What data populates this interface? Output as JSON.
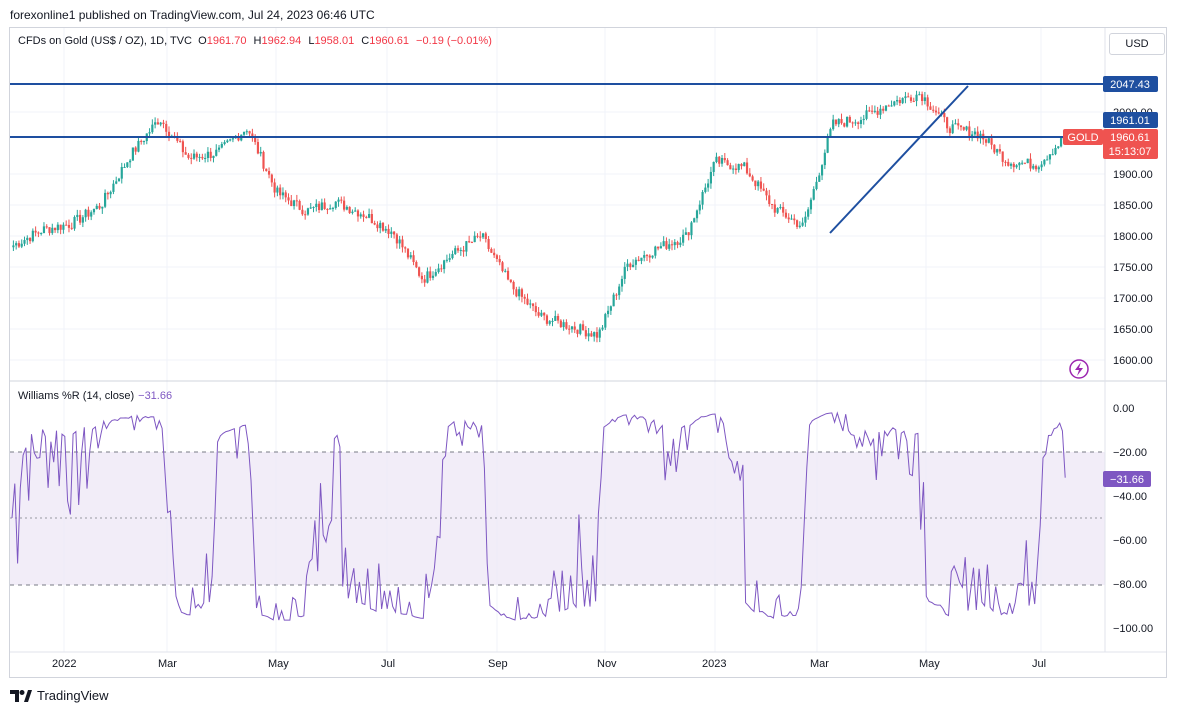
{
  "header": {
    "publisher_text": "forexonline1 published on TradingView.com, Jul 24, 2023 06:46 UTC"
  },
  "legend": {
    "symbol": "CFDs on Gold (US$ / OZ), 1D, TVC",
    "open_label": "O",
    "open": "1961.70",
    "high_label": "H",
    "high": "1962.94",
    "low_label": "L",
    "low": "1958.01",
    "close_label": "C",
    "close": "1960.61",
    "change": "−0.19 (−0.01%)"
  },
  "currency_button": "USD",
  "price_axis": {
    "ticks": [
      "2000.00",
      "1900.00",
      "1850.00",
      "1800.00",
      "1750.00",
      "1700.00",
      "1650.00",
      "1600.00"
    ],
    "badges": {
      "level_upper": "2047.43",
      "level_lower": "1961.01",
      "symbol_tag": "GOLD",
      "last_price": "1960.61",
      "countdown": "15:13:07"
    }
  },
  "williams": {
    "label": "Williams %R (14, close)",
    "value": "−31.66",
    "ticks": [
      "0.00",
      "−20.00",
      "−40.00",
      "−60.00",
      "−80.00",
      "−100.00"
    ]
  },
  "time_axis": {
    "labels": [
      "2022",
      "Mar",
      "May",
      "Jul",
      "Sep",
      "Nov",
      "2023",
      "Mar",
      "May",
      "Jul"
    ]
  },
  "footer": {
    "brand": "TradingView"
  },
  "colors": {
    "up": "#26a69a",
    "down": "#ef5350",
    "line": "#1e4fa0",
    "wr": "#7e57c2",
    "band": "#ede7f6"
  },
  "chart_data": [
    {
      "type": "candlestick",
      "title": "CFDs on Gold (US$ / OZ), 1D, TVC",
      "ylim": [
        1580,
        2110
      ],
      "x": [
        "2021-12",
        "2022-01",
        "2022-01",
        "2022-02",
        "2022-03",
        "2022-03",
        "2022-04",
        "2022-04",
        "2022-05",
        "2022-05",
        "2022-06",
        "2022-06",
        "2022-07",
        "2022-07",
        "2022-08",
        "2022-08",
        "2022-09",
        "2022-09",
        "2022-10",
        "2022-10",
        "2022-11",
        "2022-11",
        "2022-12",
        "2022-12",
        "2023-01",
        "2023-02",
        "2023-02",
        "2023-03",
        "2023-03",
        "2023-04",
        "2023-04",
        "2023-05",
        "2023-05",
        "2023-06",
        "2023-06",
        "2023-07",
        "2023-07"
      ],
      "close": [
        1785,
        1810,
        1820,
        1850,
        1930,
        1990,
        1925,
        1935,
        1975,
        1870,
        1840,
        1855,
        1835,
        1805,
        1730,
        1770,
        1800,
        1720,
        1670,
        1655,
        1640,
        1755,
        1780,
        1800,
        1920,
        1910,
        1845,
        1815,
        1980,
        1990,
        2015,
        2030,
        1975,
        1965,
        1920,
        1915,
        1961
      ],
      "horizontal_levels": [
        2047.43,
        1961.01
      ],
      "trendline": [
        [
          "2023-03-01",
          1805
        ],
        [
          "2023-05-15",
          2040
        ]
      ],
      "last_price": 1960.61
    },
    {
      "type": "line",
      "title": "Williams %R (14, close)",
      "ylim": [
        -100,
        0
      ],
      "band": [
        -80,
        -20
      ],
      "midline": -50,
      "last_value": -31.66
    }
  ]
}
